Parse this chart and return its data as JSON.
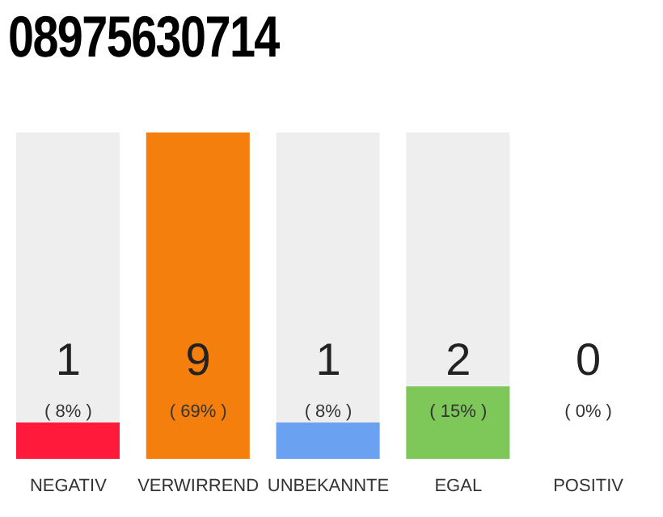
{
  "chart_data": {
    "type": "bar",
    "title": "08975630714",
    "categories": [
      "NEGATIV",
      "VERWIRREND",
      "UNBEKANNTE",
      "EGAL",
      "POSITIV"
    ],
    "values": [
      1,
      9,
      1,
      2,
      0
    ],
    "colors": [
      "#ff1a3c",
      "#f47f0c",
      "#6aa1f0",
      "#7ec85a",
      "#cccccc"
    ],
    "data_labels": true,
    "annotations": [
      "( 8% )",
      "( 69% )",
      "( 8% )",
      "( 15% )",
      "( 0% )"
    ]
  }
}
